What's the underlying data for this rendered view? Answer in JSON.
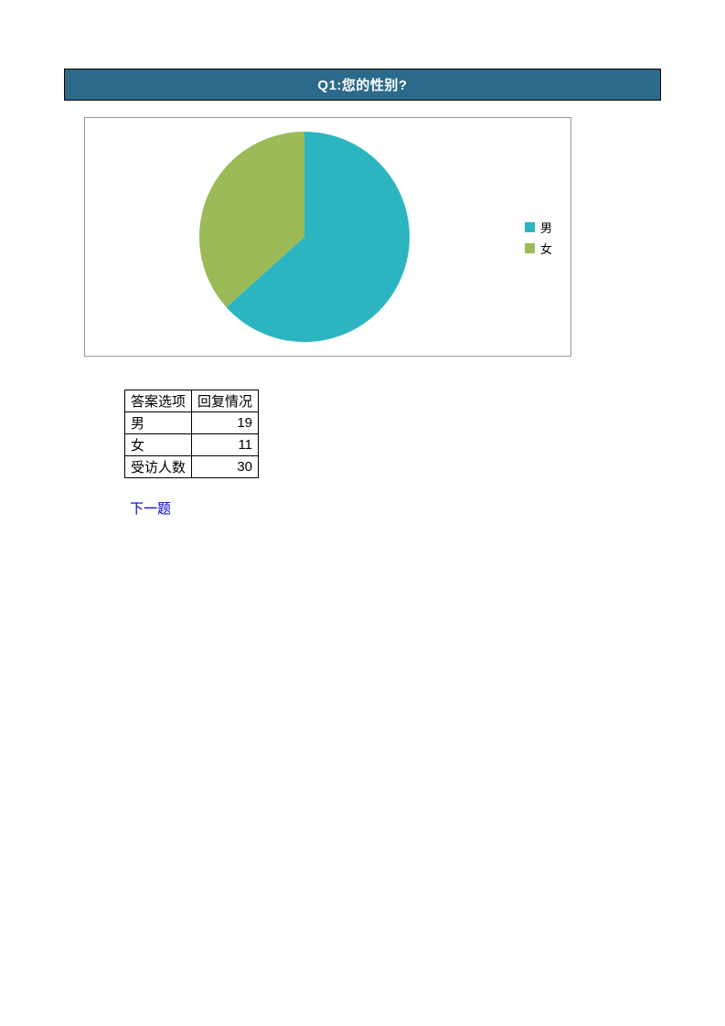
{
  "title": "Q1:您的性别?",
  "chart": {
    "type": "pie",
    "slices": [
      {
        "label": "男",
        "value": 19,
        "color": "#2cb5c0"
      },
      {
        "label": "女",
        "value": 11,
        "color": "#9cbb58"
      }
    ],
    "background_color": "#ffffff",
    "border_color": "#999999",
    "legend_fontsize": 13,
    "legend_position": "right"
  },
  "table": {
    "header_option": "答案选项",
    "header_count": "回复情况",
    "rows": [
      {
        "label": "男",
        "value": "19"
      },
      {
        "label": "女",
        "value": "11"
      }
    ],
    "total_label": "受访人数",
    "total_value": "30"
  },
  "next_label": "下一题"
}
